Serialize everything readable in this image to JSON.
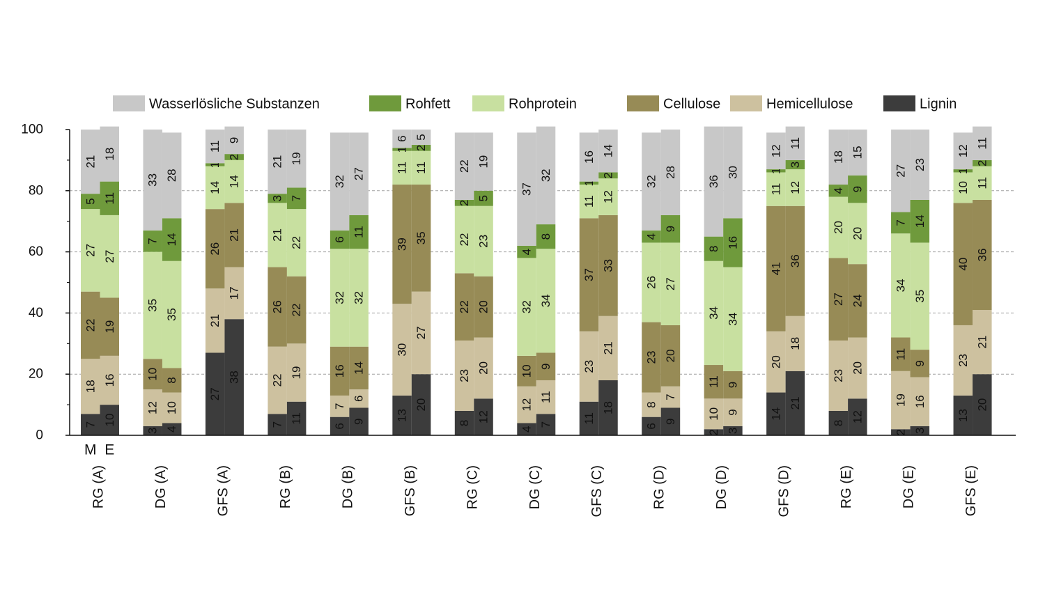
{
  "chart_data": {
    "type": "bar",
    "stacked": true,
    "ylim": [
      0,
      100
    ],
    "yticks": [
      0,
      20,
      40,
      60,
      80,
      100
    ],
    "grid": "horizontal dashed",
    "legend_position": "top",
    "sub_bars": [
      "M",
      "E"
    ],
    "categories": [
      "RG (A)",
      "DG (A)",
      "GFS (A)",
      "RG (B)",
      "DG (B)",
      "GFS (B)",
      "RG (C)",
      "DG (C)",
      "GFS (C)",
      "RG (D)",
      "DG (D)",
      "GFS (D)",
      "RG (E)",
      "DG (E)",
      "GFS (E)"
    ],
    "series": [
      {
        "name": "Lignin",
        "color": "#3c3c3c",
        "M": [
          7,
          3,
          27,
          7,
          6,
          13,
          8,
          4,
          11,
          6,
          2,
          14,
          8,
          2,
          13
        ],
        "E": [
          10,
          4,
          38,
          11,
          9,
          20,
          12,
          7,
          18,
          9,
          3,
          21,
          12,
          3,
          20
        ]
      },
      {
        "name": "Hemicellulose",
        "color": "#cdc19f",
        "M": [
          18,
          12,
          21,
          22,
          7,
          30,
          23,
          12,
          23,
          8,
          10,
          20,
          23,
          19,
          23
        ],
        "E": [
          16,
          10,
          17,
          19,
          6,
          27,
          20,
          11,
          21,
          7,
          9,
          18,
          20,
          16,
          21
        ]
      },
      {
        "name": "Cellulose",
        "color": "#978b56",
        "M": [
          22,
          10,
          26,
          26,
          16,
          39,
          22,
          10,
          37,
          23,
          11,
          41,
          27,
          11,
          40
        ],
        "E": [
          19,
          8,
          21,
          22,
          14,
          35,
          20,
          9,
          33,
          20,
          9,
          36,
          24,
          9,
          36
        ]
      },
      {
        "name": "Rohprotein",
        "color": "#c8e0a0",
        "M": [
          27,
          35,
          14,
          21,
          32,
          11,
          22,
          32,
          11,
          26,
          34,
          11,
          20,
          34,
          10
        ],
        "E": [
          27,
          35,
          14,
          22,
          32,
          11,
          23,
          34,
          12,
          27,
          34,
          12,
          20,
          35,
          11
        ]
      },
      {
        "name": "Rohfett",
        "color": "#6f9a3c",
        "M": [
          5,
          7,
          1,
          3,
          6,
          1,
          2,
          4,
          1,
          4,
          8,
          1,
          4,
          7,
          1
        ],
        "E": [
          11,
          14,
          2,
          7,
          11,
          2,
          5,
          8,
          2,
          9,
          16,
          3,
          9,
          14,
          2
        ]
      },
      {
        "name": "Wasserlösliche Substanzen",
        "color": "#c8c8c8",
        "M": [
          21,
          33,
          11,
          21,
          32,
          6,
          22,
          37,
          16,
          32,
          36,
          12,
          18,
          27,
          12
        ],
        "E": [
          18,
          28,
          9,
          19,
          27,
          5,
          19,
          32,
          14,
          28,
          30,
          11,
          15,
          23,
          11
        ]
      }
    ],
    "legend_order": [
      "Wasserlösliche Substanzen",
      "Rohfett",
      "Rohprotein",
      "Cellulose",
      "Hemicellulose",
      "Lignin"
    ]
  }
}
